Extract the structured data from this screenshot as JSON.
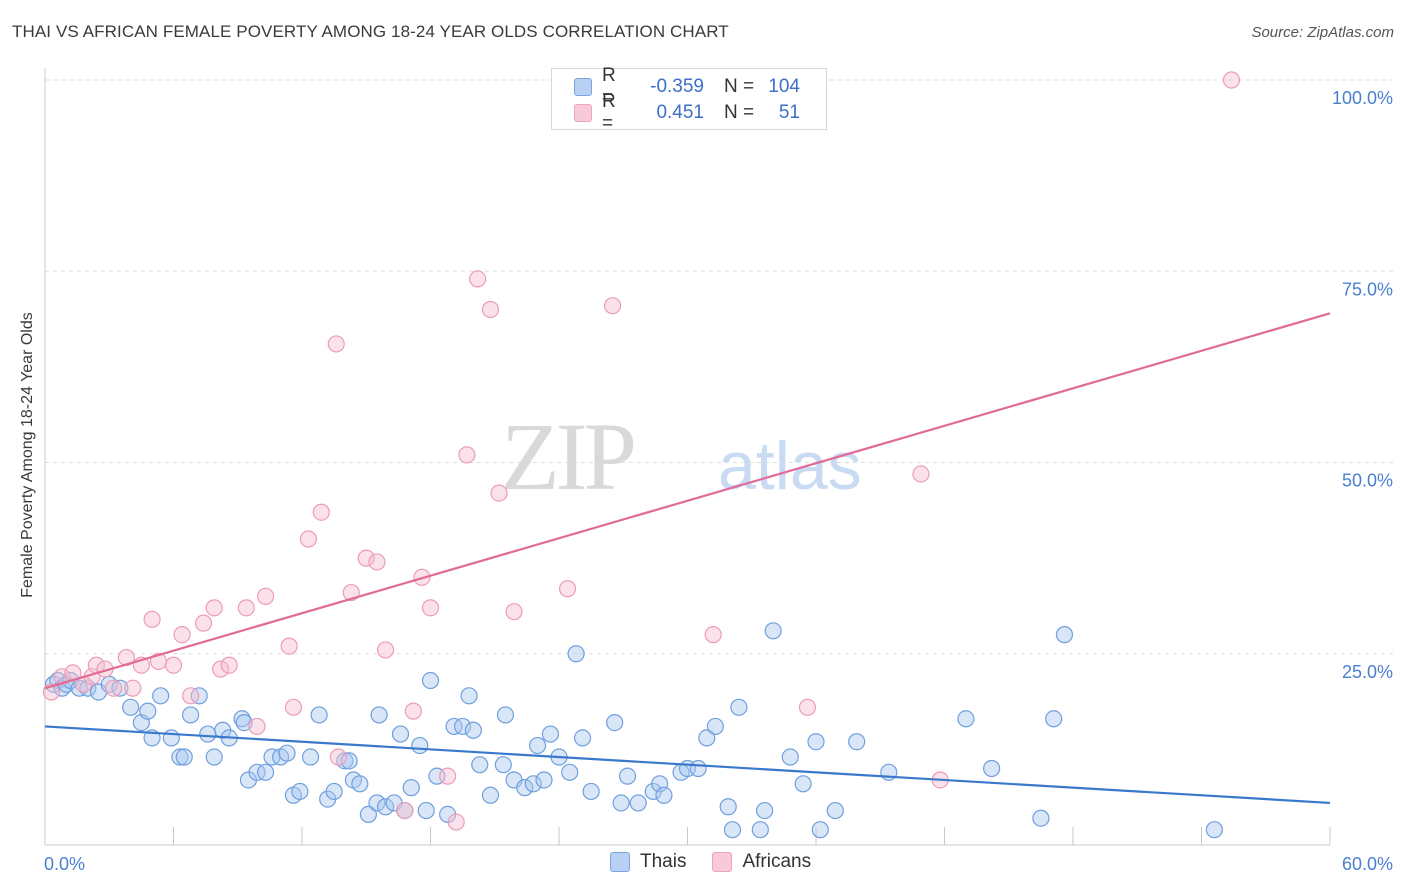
{
  "title": "THAI VS AFRICAN FEMALE POVERTY AMONG 18-24 YEAR OLDS CORRELATION CHART",
  "source": "Source: ZipAtlas.com",
  "watermark": {
    "zip": "ZIP",
    "atlas": "atlas"
  },
  "legend_top": {
    "rows": [
      {
        "r_label": "R =",
        "r_value": "-0.359",
        "n_label": "N =",
        "n_value": "104"
      },
      {
        "r_label": "R =",
        "r_value": "0.451",
        "n_label": "N =",
        "n_value": "51"
      }
    ]
  },
  "legend_bottom": {
    "items": [
      {
        "label": "Thais"
      },
      {
        "label": "Africans"
      }
    ]
  },
  "colors": {
    "thai_fill": "#a9c7f0",
    "thai_stroke": "#6f9fde",
    "thai_line": "#3a78cc",
    "african_fill": "#f6bfd0",
    "african_stroke": "#ee9bb7",
    "african_line": "#e06a98",
    "axis_text": "#4a7fd0",
    "grid": "#dddddd"
  },
  "chart_data": {
    "type": "scatter",
    "title": "THAI VS AFRICAN FEMALE POVERTY AMONG 18-24 YEAR OLDS CORRELATION CHART",
    "xlabel": "",
    "ylabel": "Female Poverty Among 18-24 Year Olds",
    "xlim": [
      0,
      60
    ],
    "ylim": [
      0,
      100
    ],
    "x_tick_labels": [
      {
        "value": 0,
        "label": "0.0%"
      },
      {
        "value": 60,
        "label": "60.0%"
      }
    ],
    "y_tick_labels": [
      {
        "value": 25,
        "label": "25.0%"
      },
      {
        "value": 50,
        "label": "50.0%"
      },
      {
        "value": 75,
        "label": "75.0%"
      },
      {
        "value": 100,
        "label": "100.0%"
      }
    ],
    "series": [
      {
        "name": "Thais",
        "r": -0.359,
        "n": 104,
        "trend": {
          "x": [
            0,
            60
          ],
          "y": [
            15.5,
            5.5
          ]
        },
        "points": [
          [
            0.4,
            21
          ],
          [
            0.6,
            21.5
          ],
          [
            0.8,
            20.5
          ],
          [
            1.0,
            21
          ],
          [
            1.2,
            21.5
          ],
          [
            1.6,
            20.5
          ],
          [
            2.0,
            20.5
          ],
          [
            2.5,
            20
          ],
          [
            3.0,
            21
          ],
          [
            3.5,
            20.5
          ],
          [
            4.0,
            18
          ],
          [
            4.5,
            16
          ],
          [
            4.8,
            17.5
          ],
          [
            5.0,
            14
          ],
          [
            5.4,
            19.5
          ],
          [
            5.9,
            14
          ],
          [
            6.3,
            11.5
          ],
          [
            6.5,
            11.5
          ],
          [
            6.8,
            17
          ],
          [
            7.2,
            19.5
          ],
          [
            7.6,
            14.5
          ],
          [
            7.9,
            11.5
          ],
          [
            8.3,
            15
          ],
          [
            8.6,
            14
          ],
          [
            9.2,
            16.5
          ],
          [
            9.3,
            16
          ],
          [
            9.5,
            8.5
          ],
          [
            9.9,
            9.5
          ],
          [
            10.3,
            9.5
          ],
          [
            10.6,
            11.5
          ],
          [
            11.0,
            11.5
          ],
          [
            11.3,
            12
          ],
          [
            11.6,
            6.5
          ],
          [
            11.9,
            7
          ],
          [
            12.4,
            11.5
          ],
          [
            12.8,
            17
          ],
          [
            13.2,
            6
          ],
          [
            13.5,
            7
          ],
          [
            14.0,
            11
          ],
          [
            14.2,
            11
          ],
          [
            14.4,
            8.5
          ],
          [
            14.7,
            8
          ],
          [
            15.1,
            4
          ],
          [
            15.5,
            5.5
          ],
          [
            15.6,
            17
          ],
          [
            15.9,
            5
          ],
          [
            16.3,
            5.5
          ],
          [
            16.6,
            14.5
          ],
          [
            16.8,
            4.5
          ],
          [
            17.1,
            7.5
          ],
          [
            17.5,
            13
          ],
          [
            17.8,
            4.5
          ],
          [
            18.0,
            21.5
          ],
          [
            18.3,
            9
          ],
          [
            18.8,
            4
          ],
          [
            19.1,
            15.5
          ],
          [
            19.5,
            15.5
          ],
          [
            19.8,
            19.5
          ],
          [
            20.0,
            15
          ],
          [
            20.3,
            10.5
          ],
          [
            20.8,
            6.5
          ],
          [
            21.4,
            10.5
          ],
          [
            21.5,
            17
          ],
          [
            21.9,
            8.5
          ],
          [
            22.4,
            7.5
          ],
          [
            22.8,
            8
          ],
          [
            23.0,
            13
          ],
          [
            23.3,
            8.5
          ],
          [
            23.6,
            14.5
          ],
          [
            24.0,
            11.5
          ],
          [
            24.5,
            9.5
          ],
          [
            24.8,
            25
          ],
          [
            25.1,
            14
          ],
          [
            25.5,
            7
          ],
          [
            26.6,
            16
          ],
          [
            26.9,
            5.5
          ],
          [
            27.2,
            9
          ],
          [
            27.7,
            5.5
          ],
          [
            28.4,
            7
          ],
          [
            28.7,
            8
          ],
          [
            28.9,
            6.5
          ],
          [
            29.7,
            9.5
          ],
          [
            30.0,
            10
          ],
          [
            30.5,
            10
          ],
          [
            30.9,
            14
          ],
          [
            31.3,
            15.5
          ],
          [
            31.9,
            5
          ],
          [
            32.1,
            2
          ],
          [
            32.4,
            18
          ],
          [
            33.4,
            2
          ],
          [
            33.6,
            4.5
          ],
          [
            34.0,
            28
          ],
          [
            34.8,
            11.5
          ],
          [
            35.4,
            8
          ],
          [
            36.0,
            13.5
          ],
          [
            36.2,
            2
          ],
          [
            36.9,
            4.5
          ],
          [
            37.9,
            13.5
          ],
          [
            39.4,
            9.5
          ],
          [
            43.0,
            16.5
          ],
          [
            44.2,
            10
          ],
          [
            46.5,
            3.5
          ],
          [
            47.1,
            16.5
          ],
          [
            47.6,
            27.5
          ],
          [
            54.6,
            2
          ]
        ]
      },
      {
        "name": "Africans",
        "r": 0.451,
        "n": 51,
        "trend": {
          "x": [
            0,
            60
          ],
          "y": [
            20.5,
            69.5
          ]
        },
        "points": [
          [
            0.3,
            20
          ],
          [
            0.8,
            22
          ],
          [
            1.3,
            22.5
          ],
          [
            1.8,
            21
          ],
          [
            2.2,
            22
          ],
          [
            2.4,
            23.5
          ],
          [
            2.8,
            23
          ],
          [
            3.2,
            20.5
          ],
          [
            3.8,
            24.5
          ],
          [
            4.1,
            20.5
          ],
          [
            4.5,
            23.5
          ],
          [
            5.0,
            29.5
          ],
          [
            5.3,
            24
          ],
          [
            6.0,
            23.5
          ],
          [
            6.4,
            27.5
          ],
          [
            6.8,
            19.5
          ],
          [
            7.4,
            29
          ],
          [
            7.9,
            31
          ],
          [
            8.2,
            23
          ],
          [
            8.6,
            23.5
          ],
          [
            9.4,
            31
          ],
          [
            9.9,
            15.5
          ],
          [
            10.3,
            32.5
          ],
          [
            11.4,
            26
          ],
          [
            11.6,
            18
          ],
          [
            12.3,
            40
          ],
          [
            12.9,
            43.5
          ],
          [
            13.6,
            65.5
          ],
          [
            13.7,
            11.5
          ],
          [
            14.3,
            33
          ],
          [
            15.0,
            37.5
          ],
          [
            15.5,
            37
          ],
          [
            15.9,
            25.5
          ],
          [
            16.8,
            4.5
          ],
          [
            17.2,
            17.5
          ],
          [
            17.6,
            35
          ],
          [
            18.0,
            31
          ],
          [
            18.8,
            9
          ],
          [
            19.2,
            3
          ],
          [
            19.7,
            51
          ],
          [
            20.2,
            74
          ],
          [
            20.8,
            70
          ],
          [
            21.2,
            46
          ],
          [
            21.9,
            30.5
          ],
          [
            24.4,
            33.5
          ],
          [
            26.5,
            70.5
          ],
          [
            31.2,
            27.5
          ],
          [
            35.6,
            18
          ],
          [
            40.9,
            48.5
          ],
          [
            41.8,
            8.5
          ],
          [
            55.4,
            100
          ]
        ]
      }
    ]
  }
}
